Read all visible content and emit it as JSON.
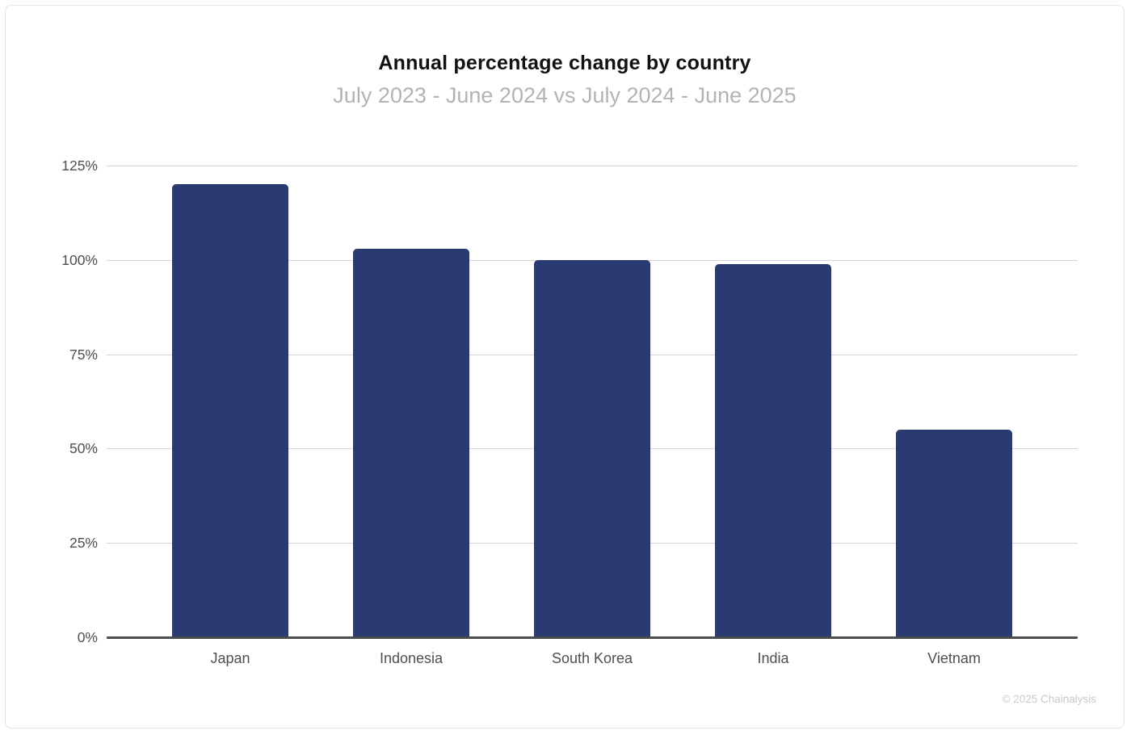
{
  "page": {
    "copyright": "© 2025 Chainalysis"
  },
  "chart_data": {
    "type": "bar",
    "title": "Annual percentage change by country",
    "subtitle": "July 2023 - June 2024 vs July 2024 - June 2025",
    "categories": [
      "Japan",
      "Indonesia",
      "South Korea",
      "India",
      "Vietnam"
    ],
    "values": [
      120,
      103,
      100,
      99,
      55
    ],
    "unit": "%",
    "xlabel": "",
    "ylabel": "",
    "ylim": [
      0,
      125
    ],
    "yticks": [
      "0%",
      "25%",
      "50%",
      "75%",
      "100%",
      "125%"
    ],
    "ytick_values": [
      0,
      25,
      50,
      75,
      100,
      125
    ],
    "grid": true,
    "legend_position": "none",
    "colors": {
      "bar": "#293B71",
      "gridline": "#D6D6D6",
      "axis_line": "#4D4D4D",
      "title": "#111111",
      "subtitle": "#B3B3B3",
      "tick_label": "#4F4F4F",
      "copyright": "#C9C9C9",
      "card_border": "#E3E3E3",
      "background": "#FFFFFF"
    }
  }
}
